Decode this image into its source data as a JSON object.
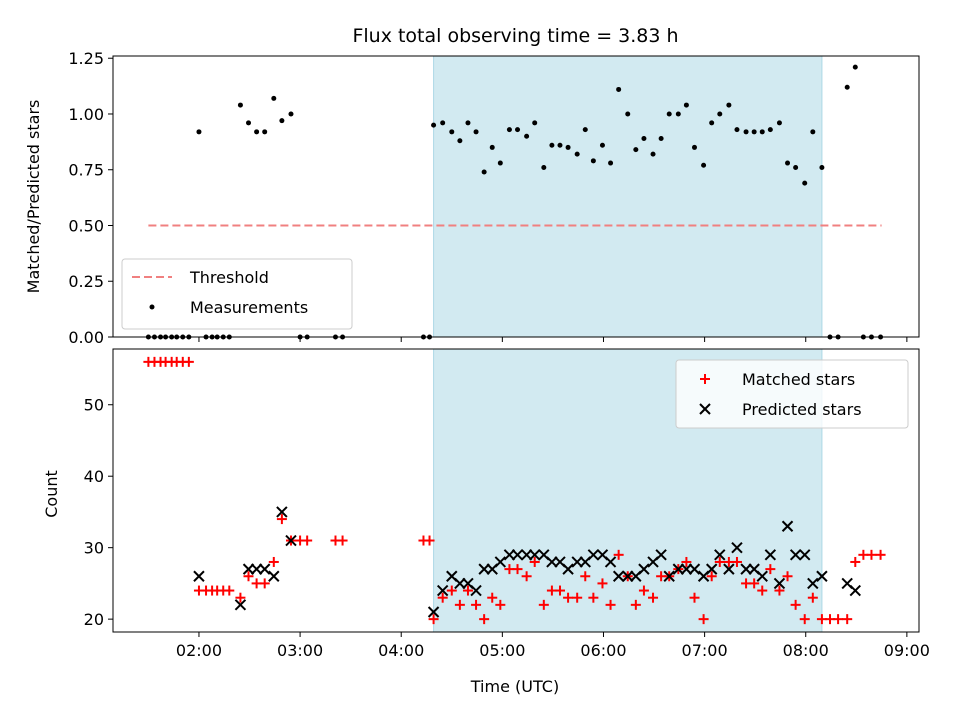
{
  "chart_data": [
    {
      "type": "scatter",
      "title": "Flux total observing time = 3.83 h",
      "xlabel": "",
      "ylabel": "Matched/Predicted stars",
      "xlim": [
        1.15,
        9.12
      ],
      "ylim": [
        0.0,
        1.26
      ],
      "yticks": [
        0.0,
        0.25,
        0.5,
        0.75,
        1.0,
        1.25
      ],
      "ytick_labels": [
        "0.00",
        "0.25",
        "0.50",
        "0.75",
        "1.00",
        "1.25"
      ],
      "xticks": [
        2,
        3,
        4,
        5,
        6,
        7,
        8,
        9
      ],
      "shaded_span": {
        "x": [
          4.32,
          8.16
        ],
        "color": "#add8e6"
      },
      "legend_position": "lower-left",
      "threshold": {
        "name": "Threshold",
        "y": 0.5,
        "x": [
          1.5,
          8.75
        ],
        "color": "#f08080",
        "style": "dashed"
      },
      "series": [
        {
          "name": "Measurements",
          "color": "#000000",
          "marker": "dot",
          "x": [
            1.5,
            1.56,
            1.62,
            1.67,
            1.73,
            1.78,
            1.84,
            1.9,
            2.0,
            2.07,
            2.13,
            2.18,
            2.24,
            2.3,
            2.41,
            2.49,
            2.57,
            2.65,
            2.74,
            2.82,
            2.91,
            3.0,
            3.07,
            3.35,
            3.42,
            4.22,
            4.28,
            4.32,
            4.41,
            4.5,
            4.58,
            4.66,
            4.74,
            4.82,
            4.9,
            4.98,
            5.07,
            5.15,
            5.24,
            5.32,
            5.41,
            5.49,
            5.57,
            5.65,
            5.74,
            5.82,
            5.9,
            5.99,
            6.07,
            6.15,
            6.24,
            6.32,
            6.4,
            6.49,
            6.57,
            6.65,
            6.74,
            6.82,
            6.9,
            6.99,
            7.07,
            7.15,
            7.24,
            7.32,
            7.41,
            7.49,
            7.57,
            7.65,
            7.74,
            7.82,
            7.9,
            7.99,
            8.07,
            8.16,
            8.24,
            8.32,
            8.41,
            8.49,
            8.57,
            8.65,
            8.74
          ],
          "y": [
            0,
            0,
            0,
            0,
            0,
            0,
            0,
            0,
            0.92,
            0,
            0,
            0,
            0,
            0,
            1.04,
            0.96,
            0.92,
            0.92,
            1.07,
            0.97,
            1.0,
            0,
            0,
            0,
            0,
            0,
            0,
            0.95,
            0.96,
            0.92,
            0.88,
            0.96,
            0.92,
            0.74,
            0.85,
            0.78,
            0.93,
            0.93,
            0.9,
            0.96,
            0.76,
            0.86,
            0.86,
            0.85,
            0.82,
            0.93,
            0.79,
            0.86,
            0.78,
            1.11,
            1.0,
            0.84,
            0.89,
            0.82,
            0.89,
            1.0,
            1.0,
            1.04,
            0.85,
            0.77,
            0.96,
            1.0,
            1.04,
            0.93,
            0.92,
            0.92,
            0.92,
            0.93,
            0.96,
            0.78,
            0.76,
            0.69,
            0.92,
            0.76,
            0,
            0,
            1.12,
            1.21,
            0,
            0,
            0
          ]
        }
      ]
    },
    {
      "type": "scatter",
      "title": "",
      "xlabel": "Time (UTC)",
      "ylabel": "Count",
      "xlim": [
        1.15,
        9.12
      ],
      "ylim": [
        18.2,
        57.8
      ],
      "yticks": [
        20,
        30,
        40,
        50
      ],
      "ytick_labels": [
        "20",
        "30",
        "40",
        "50"
      ],
      "xticks": [
        2,
        3,
        4,
        5,
        6,
        7,
        8,
        9
      ],
      "xtick_labels": [
        "02:00",
        "03:00",
        "04:00",
        "05:00",
        "06:00",
        "07:00",
        "08:00",
        "09:00"
      ],
      "shaded_span": {
        "x": [
          4.32,
          8.16
        ],
        "color": "#add8e6"
      },
      "legend_position": "upper-right",
      "series": [
        {
          "name": "Matched stars",
          "color": "#ff0000",
          "marker": "plus",
          "x": [
            1.5,
            1.56,
            1.62,
            1.67,
            1.73,
            1.78,
            1.84,
            1.9,
            2.0,
            2.07,
            2.13,
            2.18,
            2.24,
            2.3,
            2.41,
            2.49,
            2.57,
            2.65,
            2.74,
            2.82,
            2.91,
            3.0,
            3.07,
            3.35,
            3.42,
            4.22,
            4.28,
            4.32,
            4.41,
            4.5,
            4.58,
            4.66,
            4.74,
            4.82,
            4.9,
            4.98,
            5.07,
            5.15,
            5.24,
            5.32,
            5.41,
            5.49,
            5.57,
            5.65,
            5.74,
            5.82,
            5.9,
            5.99,
            6.07,
            6.15,
            6.24,
            6.32,
            6.4,
            6.49,
            6.57,
            6.65,
            6.74,
            6.82,
            6.9,
            6.99,
            7.07,
            7.15,
            7.24,
            7.32,
            7.41,
            7.49,
            7.57,
            7.65,
            7.74,
            7.82,
            7.9,
            7.99,
            8.07,
            8.16,
            8.24,
            8.32,
            8.41,
            8.49,
            8.57,
            8.65,
            8.74
          ],
          "y": [
            56,
            56,
            56,
            56,
            56,
            56,
            56,
            56,
            24,
            24,
            24,
            24,
            24,
            24,
            23,
            26,
            25,
            25,
            28,
            34,
            31,
            31,
            31,
            31,
            31,
            31,
            31,
            20,
            23,
            24,
            22,
            24,
            22,
            20,
            23,
            22,
            27,
            27,
            26,
            28,
            22,
            24,
            24,
            23,
            23,
            26,
            23,
            25,
            22,
            29,
            26,
            22,
            24,
            23,
            26,
            26,
            27,
            28,
            23,
            20,
            26,
            28,
            28,
            28,
            25,
            25,
            24,
            27,
            24,
            26,
            22,
            20,
            23,
            20,
            20,
            20,
            20,
            28,
            29,
            29,
            29
          ]
        },
        {
          "name": "Predicted stars",
          "color": "#000000",
          "marker": "x",
          "x": [
            2.0,
            2.41,
            2.49,
            2.57,
            2.65,
            2.74,
            2.82,
            2.91,
            4.32,
            4.41,
            4.5,
            4.58,
            4.66,
            4.74,
            4.82,
            4.9,
            4.98,
            5.07,
            5.15,
            5.24,
            5.32,
            5.41,
            5.49,
            5.57,
            5.65,
            5.74,
            5.82,
            5.9,
            5.99,
            6.07,
            6.15,
            6.24,
            6.32,
            6.4,
            6.49,
            6.57,
            6.65,
            6.74,
            6.82,
            6.9,
            6.99,
            7.07,
            7.15,
            7.24,
            7.32,
            7.41,
            7.49,
            7.57,
            7.65,
            7.74,
            7.82,
            7.9,
            7.99,
            8.07,
            8.16,
            8.41,
            8.49
          ],
          "y": [
            26,
            22,
            27,
            27,
            27,
            26,
            35,
            31,
            21,
            24,
            26,
            25,
            25,
            24,
            27,
            27,
            28,
            29,
            29,
            29,
            29,
            29,
            28,
            28,
            27,
            28,
            28,
            29,
            29,
            28,
            26,
            26,
            26,
            27,
            28,
            29,
            26,
            27,
            27,
            27,
            26,
            27,
            29,
            27,
            30,
            27,
            27,
            26,
            29,
            25,
            33,
            29,
            29,
            25,
            26,
            25,
            24
          ]
        }
      ]
    }
  ]
}
